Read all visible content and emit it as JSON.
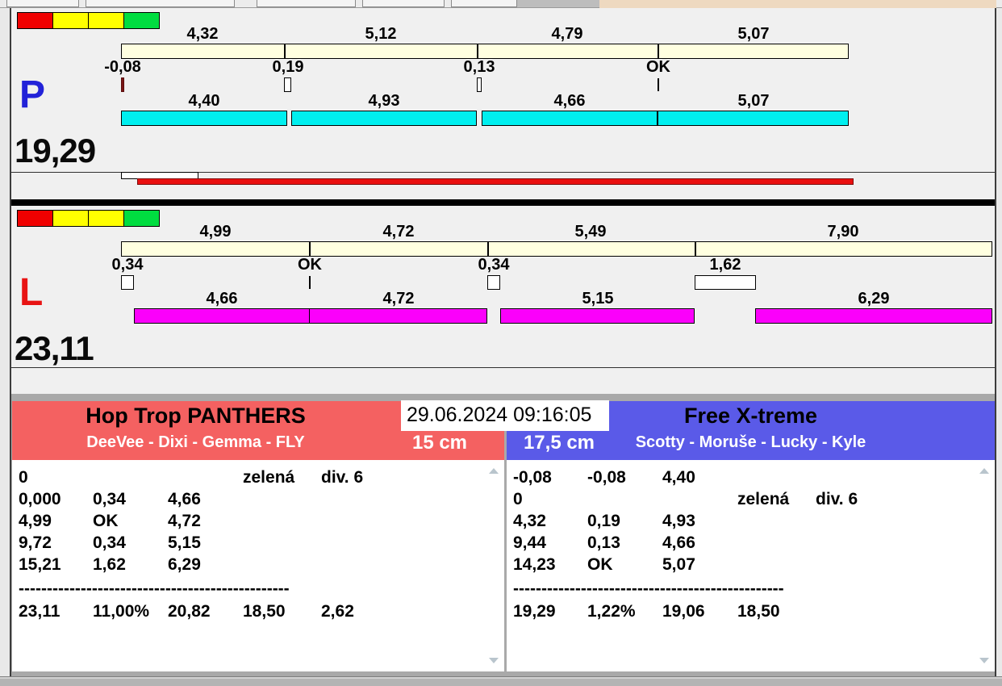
{
  "datetime": "29.06.2024 09:16:05",
  "colors": {
    "background": "#f0f0f0",
    "split_bar": "#ffffe0",
    "lane_p_bar": "#00efef",
    "lane_l_bar": "#fb00fb",
    "team_left_header": "#f46161",
    "team_right_header": "#5a5ae8",
    "progress_red": "#ea1010",
    "light_red": "#f00000",
    "light_yellow": "#ffff00",
    "light_green": "#00dd40"
  },
  "lanes": [
    {
      "letter": "P",
      "letter_color": "#2222d8",
      "total": "19,29",
      "lights": [
        "#f00000",
        "#ffff00",
        "#ffff00",
        "#00dd40"
      ],
      "splits": [
        "4,32",
        "5,12",
        "4,79",
        "5,07"
      ],
      "devs": [
        "-0,08",
        "0,19",
        "0,13",
        "OK"
      ],
      "dog_times": [
        "4,40",
        "4,93",
        "4,66",
        "5,07"
      ],
      "bar_color": "#00efef",
      "progress_bar": true
    },
    {
      "letter": "L",
      "letter_color": "#e81414",
      "total": "23,11",
      "lights": [
        "#f00000",
        "#ffff00",
        "#ffff00",
        "#00dd40"
      ],
      "splits": [
        "4,99",
        "4,72",
        "5,49",
        "7,90"
      ],
      "devs": [
        "0,34",
        "OK",
        "0,34",
        "1,62"
      ],
      "dog_times": [
        "4,66",
        "4,72",
        "5,15",
        "6,29"
      ],
      "bar_color": "#fb00fb",
      "progress_bar": false
    }
  ],
  "panels": {
    "left": {
      "team": "Hop Trop PANTHERS",
      "dogs": "DeeVee - Dixi - Gemma - FLY",
      "jump_height": "15 cm",
      "header_color": "#f46161",
      "rows": [
        [
          "0",
          "",
          "",
          "zelená",
          "div. 6"
        ],
        [
          "0,000",
          "0,34",
          "4,66",
          "",
          ""
        ],
        [
          "4,99",
          "OK",
          "4,72",
          "",
          ""
        ],
        [
          "9,72",
          "0,34",
          "5,15",
          "",
          ""
        ],
        [
          "15,21",
          "1,62",
          "6,29",
          "",
          ""
        ]
      ],
      "separator": "------------------------------------------------",
      "summary": [
        "23,11",
        "11,00%",
        "20,82",
        "18,50",
        "2,62"
      ]
    },
    "right": {
      "team": "Free X-treme",
      "dogs": "Scotty - Moruše - Lucky - Kyle",
      "jump_height": "17,5 cm",
      "header_color": "#5a5ae8",
      "rows": [
        [
          "-0,08",
          "-0,08",
          "4,40",
          "",
          ""
        ],
        [
          "0",
          "",
          "",
          "zelená",
          "div. 6"
        ],
        [
          "4,32",
          "0,19",
          "4,93",
          "",
          ""
        ],
        [
          "9,44",
          "0,13",
          "4,66",
          "",
          ""
        ],
        [
          "14,23",
          "OK",
          "5,07",
          "",
          ""
        ]
      ],
      "separator": "------------------------------------------------",
      "summary": [
        "19,29",
        "1,22%",
        "19,06",
        "18,50",
        ""
      ]
    }
  }
}
